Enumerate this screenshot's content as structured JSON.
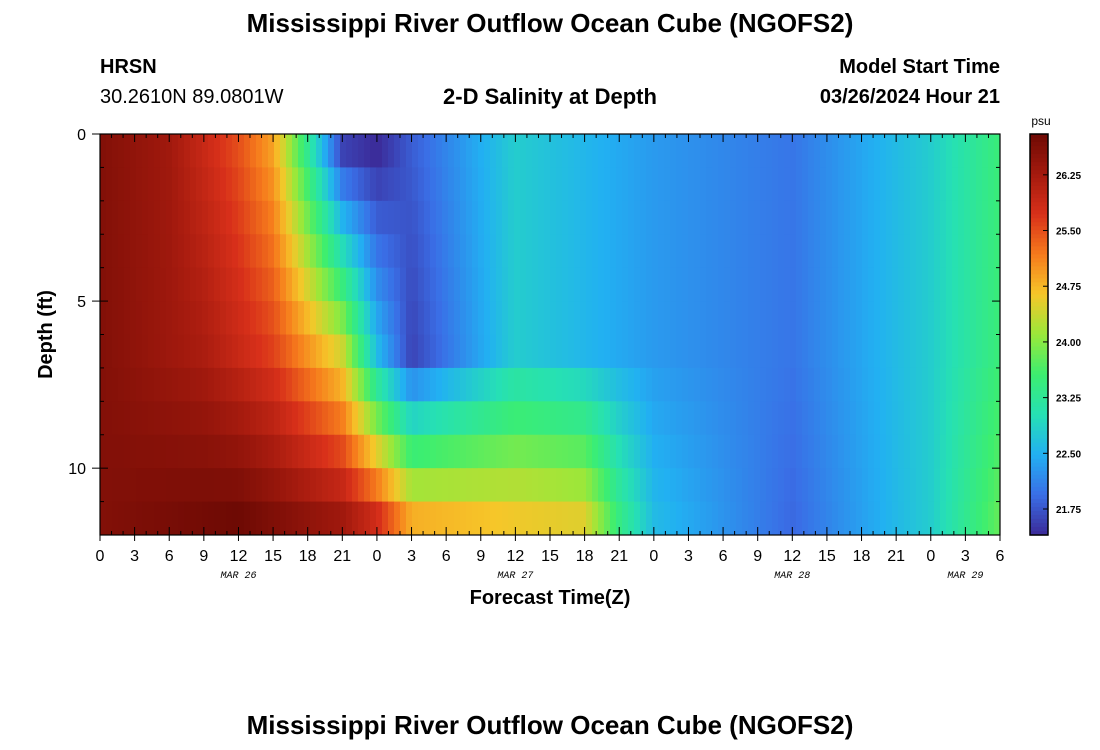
{
  "header": {
    "title": "Mississippi River Outflow Ocean Cube (NGOFS2)",
    "station": "HRSN",
    "coords": "30.2610N  89.0801W",
    "plot_title": "2-D Salinity at Depth",
    "model_start_label": "Model Start Time",
    "model_start_value": "03/26/2024 Hour 21"
  },
  "footer": {
    "title": "Mississippi River Outflow Ocean Cube (NGOFS2)"
  },
  "chart_data": {
    "type": "heatmap",
    "title": "2-D Salinity at Depth",
    "xlabel": "Forecast Time(Z)",
    "ylabel": "Depth (ft)",
    "x_ticks": [
      "0",
      "3",
      "6",
      "9",
      "12",
      "15",
      "18",
      "21",
      "0",
      "3",
      "6",
      "9",
      "12",
      "15",
      "18",
      "21",
      "0",
      "3",
      "6",
      "9",
      "12",
      "15",
      "18",
      "21",
      "0",
      "3",
      "6"
    ],
    "x_hours_range": [
      0,
      78
    ],
    "date_labels": [
      {
        "label": "MAR 26",
        "hour": 12
      },
      {
        "label": "MAR 27",
        "hour": 36
      },
      {
        "label": "MAR 28",
        "hour": 60
      },
      {
        "label": "MAR 29",
        "hour": 75
      }
    ],
    "y_ticks": [
      0,
      5,
      10
    ],
    "y_range_ft": [
      0,
      12
    ],
    "depth_layers_ft": [
      0.5,
      1.5,
      2.5,
      3.5,
      4.5,
      5.5,
      6.5,
      7.5,
      8.5,
      9.5,
      10.5,
      11.5
    ],
    "colorbar": {
      "unit": "psu",
      "min": 21.4,
      "max": 26.8,
      "ticks": [
        "21.75",
        "22.50",
        "23.25",
        "24.00",
        "24.75",
        "25.50",
        "26.25"
      ],
      "palette": [
        "#3b2a98",
        "#3a6ee6",
        "#22b0f2",
        "#26e0b4",
        "#3cee70",
        "#9ae83a",
        "#f6c629",
        "#f67a1c",
        "#d8301a",
        "#a41a0e",
        "#6e0a04"
      ]
    },
    "salinity_samples_psu": [
      {
        "depth_ft": 0.5,
        "hours": [
          0,
          6,
          12,
          15,
          18,
          21,
          24,
          27,
          36,
          48,
          60,
          72,
          78
        ],
        "values": [
          26.6,
          26.3,
          25.5,
          24.9,
          23.3,
          21.6,
          21.4,
          21.8,
          22.8,
          22.3,
          22.0,
          22.8,
          23.5
        ]
      },
      {
        "depth_ft": 6.5,
        "hours": [
          0,
          9,
          15,
          21,
          24,
          27,
          36,
          48,
          60,
          72,
          78
        ],
        "values": [
          26.6,
          26.2,
          25.6,
          24.4,
          22.6,
          21.6,
          22.8,
          22.3,
          22.0,
          22.8,
          23.5
        ]
      },
      {
        "depth_ft": 11.5,
        "hours": [
          0,
          12,
          21,
          24,
          27,
          36,
          42,
          45,
          48,
          60,
          72,
          78
        ],
        "values": [
          26.6,
          26.8,
          26.3,
          25.8,
          24.8,
          24.6,
          24.5,
          23.4,
          22.6,
          21.9,
          22.8,
          23.8
        ]
      }
    ]
  }
}
